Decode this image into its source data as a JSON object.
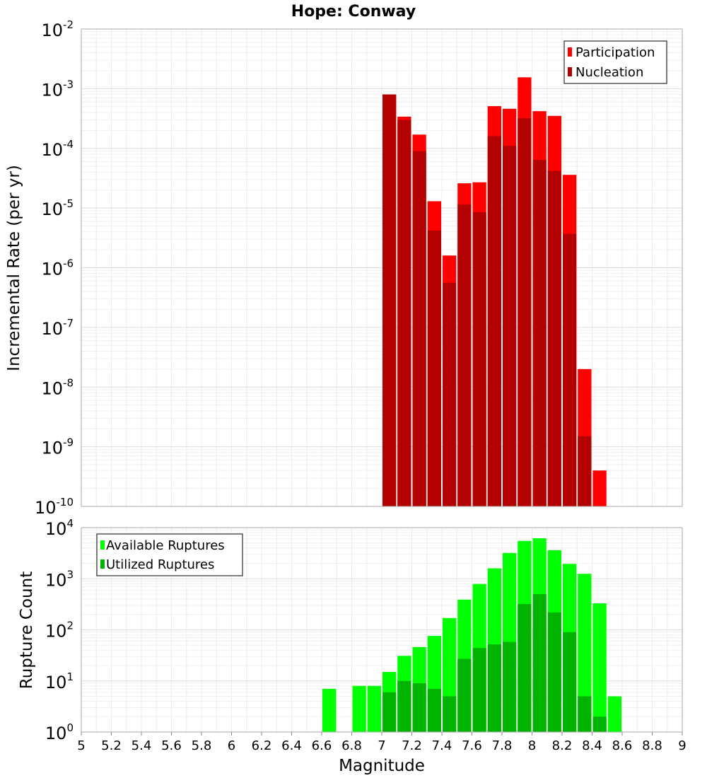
{
  "figure": {
    "title": "Hope: Conway",
    "xlabel": "Magnitude"
  },
  "chart_data": [
    {
      "type": "bar",
      "title": "Hope: Conway",
      "ylabel": "Incremental Rate (per yr)",
      "xlabel": "",
      "yscale": "log",
      "ylim_exponents": [
        -10,
        -2
      ],
      "xlim": [
        5,
        9
      ],
      "bin_width": 0.1,
      "grid": true,
      "legend_position": "top-right",
      "series": [
        {
          "name": "Participation",
          "color": "#ff0000",
          "x": [
            7.05,
            7.15,
            7.25,
            7.35,
            7.45,
            7.55,
            7.65,
            7.75,
            7.85,
            7.95,
            8.05,
            8.15,
            8.25,
            8.35,
            8.45
          ],
          "values": [
            0.0008,
            0.00034,
            0.00017,
            1.3e-05,
            1.6e-06,
            2.6e-05,
            2.7e-05,
            0.00051,
            0.00046,
            0.00155,
            0.00042,
            0.00035,
            3.6e-05,
            2e-08,
            4e-10
          ]
        },
        {
          "name": "Nucleation",
          "color": "#b30000",
          "x": [
            7.05,
            7.15,
            7.25,
            7.35,
            7.45,
            7.55,
            7.65,
            7.75,
            7.85,
            7.95,
            8.05,
            8.15,
            8.25,
            8.35
          ],
          "values": [
            0.0008,
            0.0003,
            9e-05,
            4.2e-06,
            5.6e-07,
            1.15e-05,
            8.5e-06,
            0.00016,
            0.00011,
            0.00032,
            6.4e-05,
            4.2e-05,
            3.7e-06,
            1.5e-09
          ]
        }
      ]
    },
    {
      "type": "bar",
      "title": "",
      "ylabel": "Rupture Count",
      "xlabel": "Magnitude",
      "yscale": "log",
      "ylim_exponents": [
        0,
        4
      ],
      "xlim": [
        5,
        9
      ],
      "bin_width": 0.1,
      "x_ticks": [
        "5",
        "5.2",
        "5.4",
        "5.6",
        "5.8",
        "6",
        "6.2",
        "6.4",
        "6.6",
        "6.8",
        "7",
        "7.2",
        "7.4",
        "7.6",
        "7.8",
        "8",
        "8.2",
        "8.4",
        "8.6",
        "8.8",
        "9"
      ],
      "grid": true,
      "legend_position": "top-left",
      "series": [
        {
          "name": "Available Ruptures",
          "color": "#00ff00",
          "x": [
            6.65,
            6.85,
            6.95,
            7.05,
            7.15,
            7.25,
            7.35,
            7.45,
            7.55,
            7.65,
            7.75,
            7.85,
            7.95,
            8.05,
            8.15,
            8.25,
            8.35,
            8.45,
            8.55
          ],
          "values": [
            7,
            8,
            8,
            15,
            31,
            46,
            76,
            170,
            390,
            790,
            1600,
            3200,
            5500,
            6200,
            3600,
            1950,
            1250,
            330,
            5
          ]
        },
        {
          "name": "Utilized Ruptures",
          "color": "#00b300",
          "x": [
            6.95,
            7.05,
            7.15,
            7.25,
            7.35,
            7.45,
            7.55,
            7.65,
            7.75,
            7.85,
            7.95,
            8.05,
            8.15,
            8.25,
            8.35,
            8.45
          ],
          "values": [
            1,
            6,
            10,
            9,
            7,
            5,
            27,
            44,
            52,
            58,
            320,
            500,
            220,
            90,
            5,
            2
          ]
        }
      ]
    }
  ]
}
